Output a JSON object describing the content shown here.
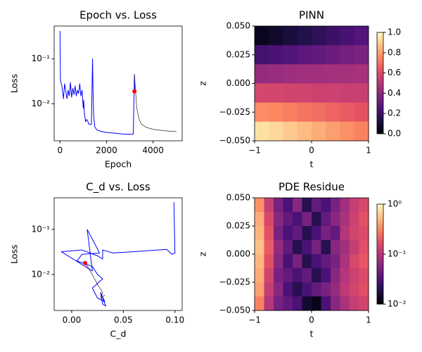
{
  "chart_data": [
    {
      "type": "line",
      "title": "Epoch vs. Loss",
      "xlabel": "Epoch",
      "ylabel": "Loss",
      "ylog": true,
      "xlim": [
        -250,
        5250
      ],
      "ylim": [
        0.0015,
        0.54
      ],
      "xticks": [
        0,
        2000,
        4000
      ],
      "yticks": [
        {
          "value": 0.1,
          "label": "10⁻¹"
        },
        {
          "value": 0.01,
          "label": "10⁻²"
        }
      ],
      "series": [
        {
          "color": "#0000ff",
          "width": 1,
          "x": [
            0,
            20,
            40,
            80,
            150,
            200,
            300,
            350,
            400,
            450,
            500,
            550,
            600,
            650,
            700,
            750,
            800,
            850,
            900,
            950,
            1000,
            1020,
            1050,
            1100,
            1150,
            1250,
            1350,
            1400,
            1420,
            1450,
            1500,
            1600,
            1800,
            2000,
            2400,
            2800,
            3150,
            3200,
            3210
          ],
          "values": [
            0.42,
            0.035,
            0.03,
            0.025,
            0.013,
            0.028,
            0.013,
            0.02,
            0.015,
            0.03,
            0.014,
            0.022,
            0.016,
            0.025,
            0.015,
            0.02,
            0.017,
            0.028,
            0.015,
            0.02,
            0.008,
            0.012,
            0.006,
            0.004,
            0.0045,
            0.0035,
            0.0035,
            0.1,
            0.02,
            0.005,
            0.003,
            0.0026,
            0.0024,
            0.0023,
            0.0022,
            0.0021,
            0.0021,
            0.045,
            0.019
          ]
        },
        {
          "color": "#000000",
          "width": 0.6,
          "x": [
            3200,
            3250,
            3300,
            3400,
            3500,
            3700,
            4000,
            4500,
            5000
          ],
          "values": [
            0.045,
            0.018,
            0.008,
            0.0045,
            0.0035,
            0.003,
            0.0027,
            0.0025,
            0.0024
          ]
        },
        {
          "color": "#ff0000",
          "marker": "dot",
          "x": [
            3200
          ],
          "values": [
            0.019
          ]
        }
      ]
    },
    {
      "type": "heatmap",
      "title": "PINN",
      "xlabel": "t",
      "ylabel": "z",
      "colormap": "magma",
      "xlim": [
        -1,
        1
      ],
      "ylim": [
        -0.05,
        0.05
      ],
      "xticks": [
        {
          "value": -1,
          "label": "−1"
        },
        0,
        1
      ],
      "yticks": [
        {
          "value": 0.05,
          "label": "0.050"
        },
        {
          "value": 0.025,
          "label": "0.025"
        },
        {
          "value": 0,
          "label": "0.000"
        },
        {
          "value": -0.025,
          "label": "−0.025"
        },
        {
          "value": -0.05,
          "label": "−0.050"
        }
      ],
      "clim": [
        0,
        1
      ],
      "cticks": [
        {
          "value": 0,
          "label": "0.0"
        },
        {
          "value": 0.2,
          "label": "0.2"
        },
        {
          "value": 0.4,
          "label": "0.4"
        },
        {
          "value": 0.6,
          "label": "0.6"
        },
        {
          "value": 0.8,
          "label": "0.8"
        },
        {
          "value": 1,
          "label": "1.0"
        }
      ],
      "values": [
        [
          0.05,
          0.08,
          0.11,
          0.14,
          0.17,
          0.2,
          0.23,
          0.26
        ],
        [
          0.22,
          0.24,
          0.26,
          0.28,
          0.3,
          0.32,
          0.34,
          0.36
        ],
        [
          0.42,
          0.43,
          0.44,
          0.45,
          0.45,
          0.46,
          0.46,
          0.47
        ],
        [
          0.58,
          0.58,
          0.57,
          0.57,
          0.56,
          0.56,
          0.55,
          0.55
        ],
        [
          0.76,
          0.75,
          0.73,
          0.71,
          0.69,
          0.67,
          0.65,
          0.63
        ],
        [
          0.94,
          0.92,
          0.89,
          0.86,
          0.83,
          0.8,
          0.77,
          0.74
        ]
      ]
    },
    {
      "type": "line",
      "title": "C_d vs. Loss",
      "xlabel": "C_d",
      "ylabel": "Loss",
      "ylog": true,
      "xlim": [
        -0.017,
        0.107
      ],
      "ylim": [
        0.0016,
        0.5
      ],
      "xticks": [
        {
          "value": 0,
          "label": "0.00"
        },
        {
          "value": 0.05,
          "label": "0.05"
        },
        {
          "value": 0.1,
          "label": "0.10"
        }
      ],
      "yticks": [
        {
          "value": 0.1,
          "label": "10⁻¹"
        },
        {
          "value": 0.01,
          "label": "10⁻²"
        }
      ],
      "series": [
        {
          "color": "#0000ff",
          "width": 1,
          "x": [
            0.099,
            0.1,
            0.097,
            0.092,
            0.06,
            0.04,
            0.03,
            0.03,
            0.025,
            0.01,
            -0.01,
            0.02,
            0.015,
            0.027,
            0.01,
            0.005,
            0.02,
            0.025,
            0.03,
            0.02,
            0.025,
            0.032,
            0.028,
            0.03,
            0.033,
            0.03
          ],
          "values": [
            0.4,
            0.03,
            0.028,
            0.036,
            0.032,
            0.03,
            0.035,
            0.022,
            0.026,
            0.035,
            0.032,
            0.012,
            0.1,
            0.03,
            0.028,
            0.02,
            0.015,
            0.01,
            0.008,
            0.005,
            0.003,
            0.0025,
            0.004,
            0.0022,
            0.002,
            0.003
          ]
        },
        {
          "color": "#000000",
          "width": 0.6,
          "x": [
            0.013,
            0.02,
            0.025,
            0.03,
            0.028,
            0.032
          ],
          "values": [
            0.018,
            0.01,
            0.006,
            0.004,
            0.003,
            0.0035
          ]
        },
        {
          "color": "#ff0000",
          "marker": "dot",
          "x": [
            0.013
          ],
          "values": [
            0.018
          ]
        }
      ]
    },
    {
      "type": "heatmap",
      "title": "PDE Residue",
      "xlabel": "t",
      "ylabel": "z",
      "colormap": "magma",
      "color_log": true,
      "xlim": [
        -1,
        1
      ],
      "ylim": [
        -0.05,
        0.05
      ],
      "xticks": [
        {
          "value": -1,
          "label": "−1"
        },
        0,
        1
      ],
      "yticks": [
        {
          "value": 0.05,
          "label": "0.050"
        },
        {
          "value": 0.025,
          "label": "0.025"
        },
        {
          "value": 0,
          "label": "0.000"
        },
        {
          "value": -0.025,
          "label": "−0.025"
        },
        {
          "value": -0.05,
          "label": "−0.050"
        }
      ],
      "clim": [
        0.01,
        1
      ],
      "cticks": [
        {
          "value": 1,
          "label": "10⁰"
        },
        {
          "value": 0.1,
          "label": "10⁻¹"
        },
        {
          "value": 0.01,
          "label": "10⁻²"
        }
      ],
      "values": [
        [
          0.35,
          0.12,
          0.05,
          0.03,
          0.06,
          0.02,
          0.04,
          0.03,
          0.05,
          0.08,
          0.12,
          0.15
        ],
        [
          0.45,
          0.15,
          0.06,
          0.04,
          0.03,
          0.05,
          0.02,
          0.04,
          0.06,
          0.09,
          0.13,
          0.18
        ],
        [
          0.5,
          0.18,
          0.05,
          0.03,
          0.04,
          0.02,
          0.03,
          0.05,
          0.04,
          0.1,
          0.14,
          0.16
        ],
        [
          0.55,
          0.2,
          0.07,
          0.04,
          0.02,
          0.03,
          0.05,
          0.02,
          0.06,
          0.08,
          0.12,
          0.17
        ],
        [
          0.5,
          0.17,
          0.06,
          0.03,
          0.05,
          0.02,
          0.03,
          0.04,
          0.05,
          0.09,
          0.15,
          0.19
        ],
        [
          0.45,
          0.14,
          0.05,
          0.04,
          0.03,
          0.04,
          0.02,
          0.03,
          0.06,
          0.1,
          0.13,
          0.16
        ],
        [
          0.4,
          0.12,
          0.06,
          0.03,
          0.02,
          0.03,
          0.04,
          0.05,
          0.07,
          0.11,
          0.14,
          0.17
        ],
        [
          0.3,
          0.1,
          0.05,
          0.04,
          0.03,
          0.015,
          0.012,
          0.03,
          0.06,
          0.09,
          0.12,
          0.14
        ]
      ]
    }
  ]
}
